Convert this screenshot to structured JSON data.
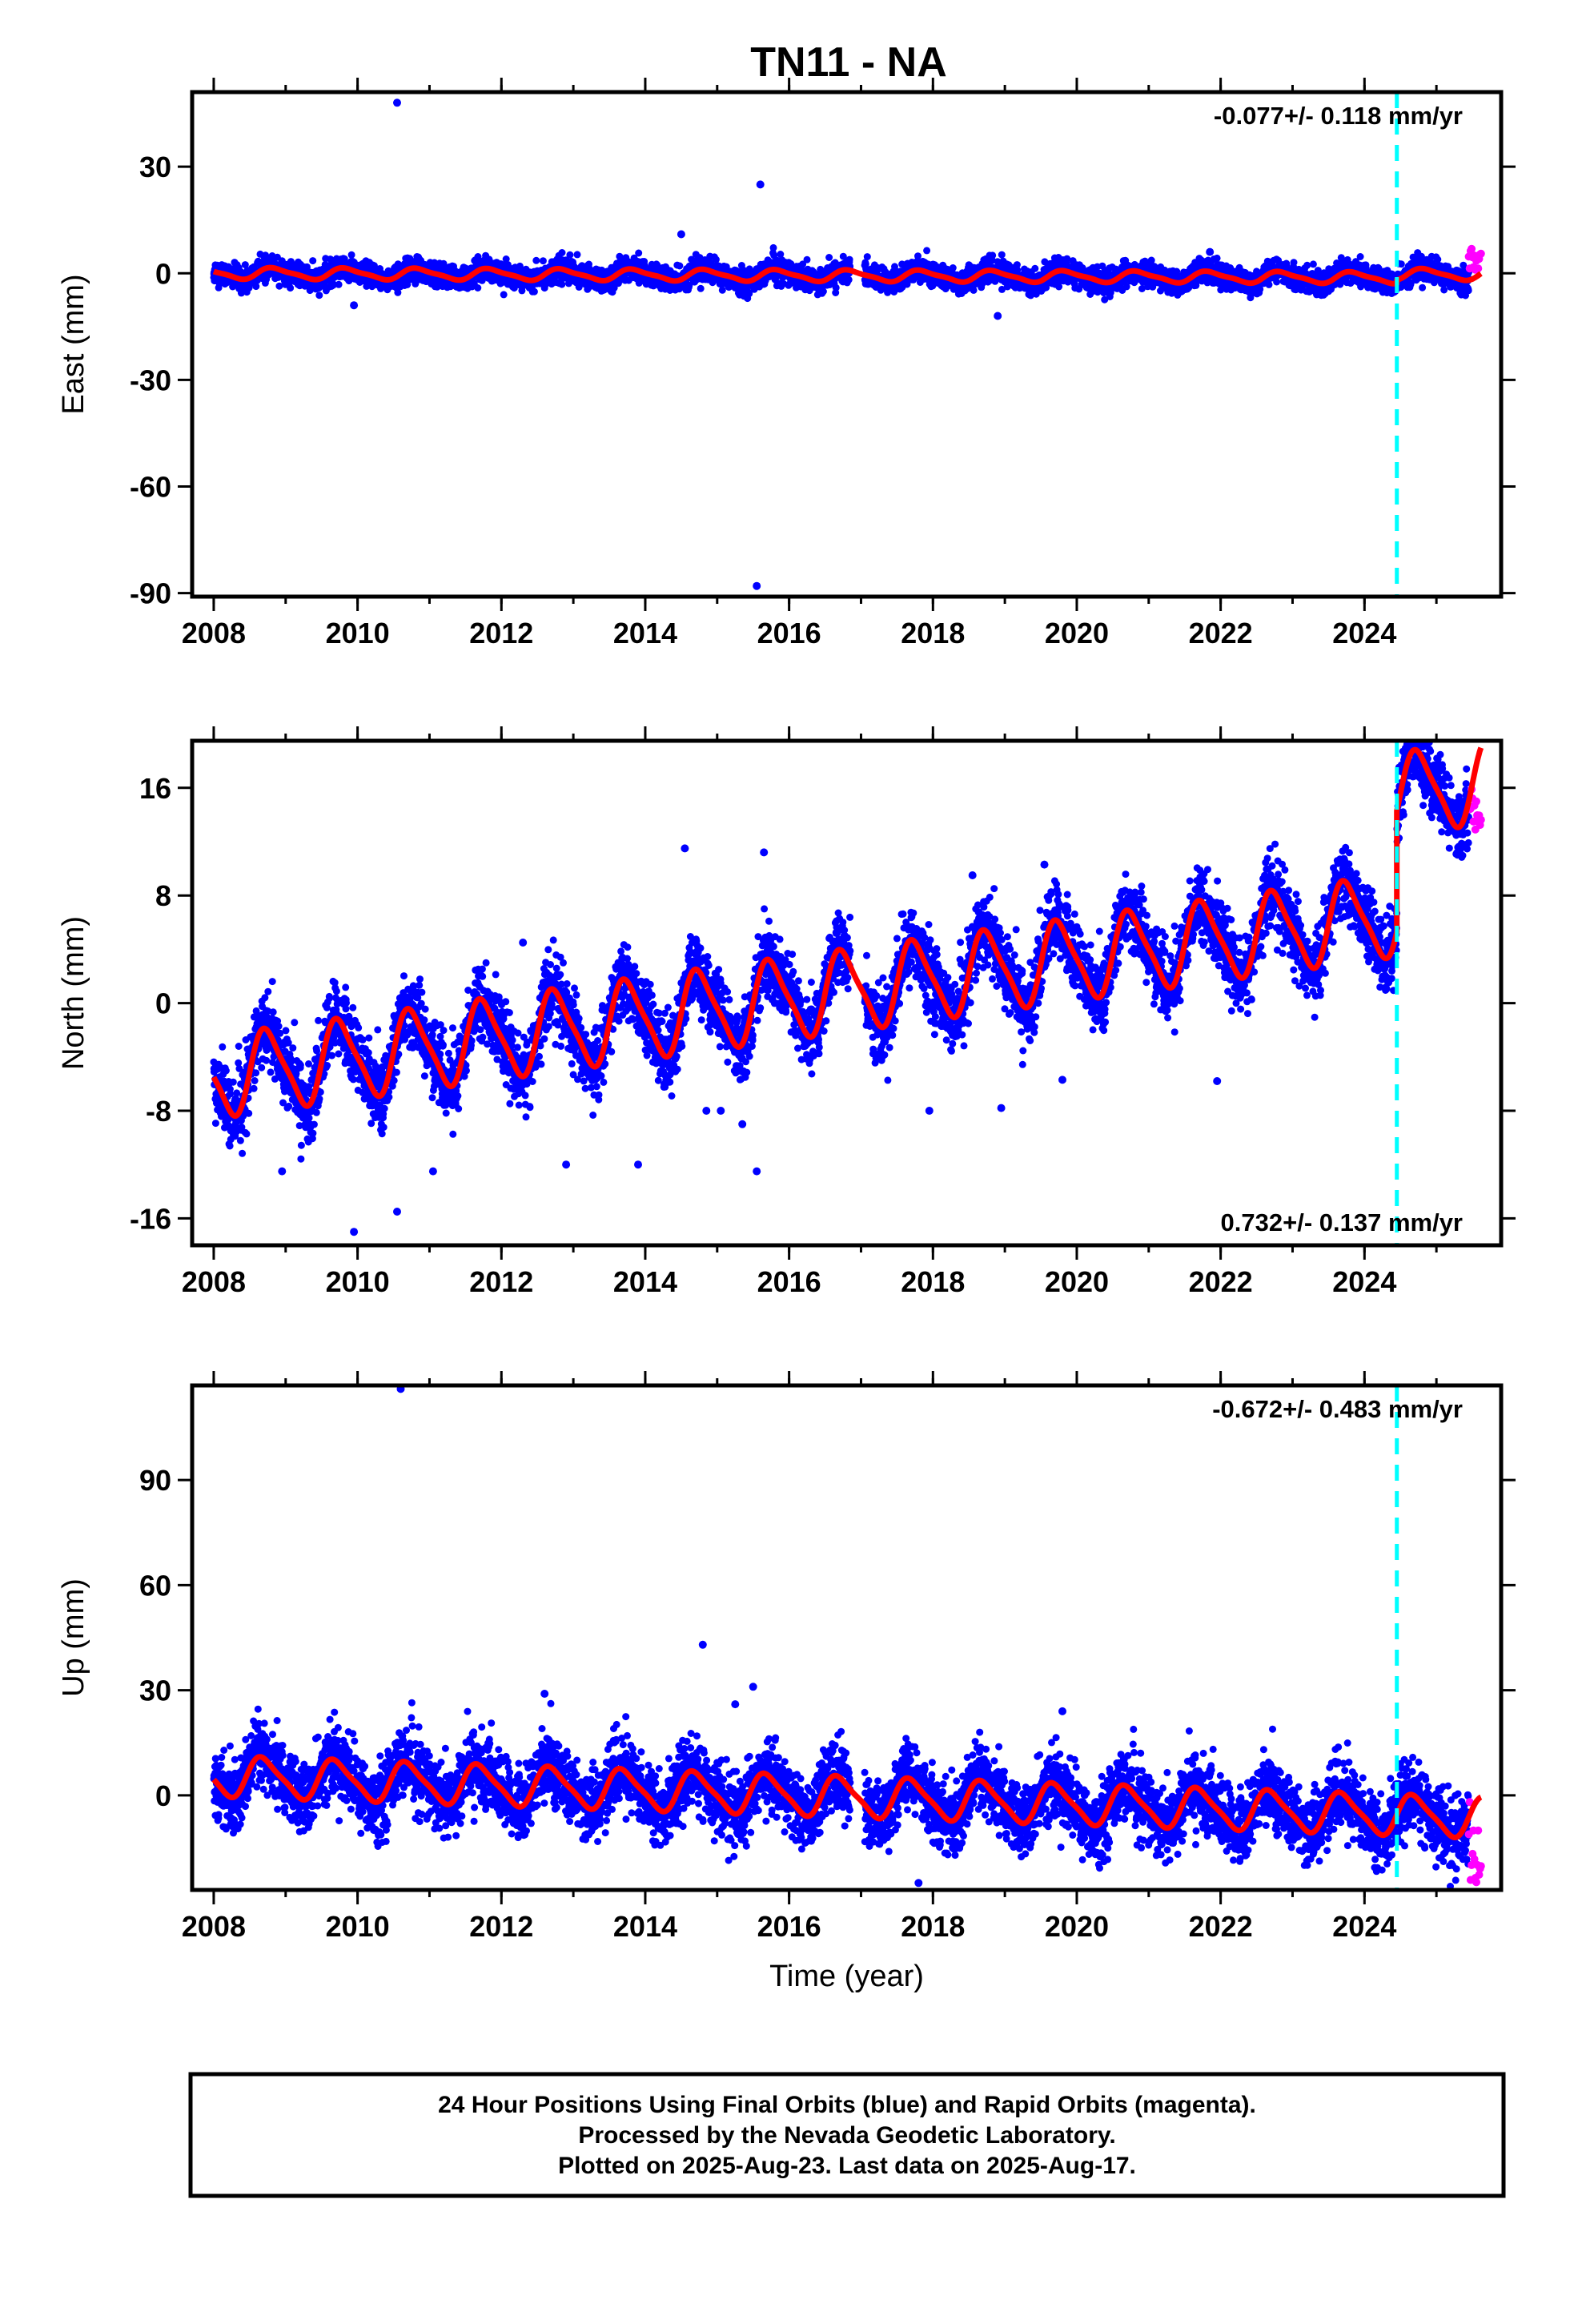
{
  "title": "TN11 - NA",
  "colors": {
    "final_orbits": "#0000ff",
    "rapid_orbits": "#ff00ff",
    "model": "#ff0000",
    "event_line": "#00ffff",
    "frame": "#000000"
  },
  "chart_data": [
    {
      "type": "scatter",
      "component": "East",
      "ylabel": "East (mm)",
      "xlabel": "",
      "xlim": [
        2007.7,
        2025.9
      ],
      "ylim": [
        -91,
        51
      ],
      "xticks": [
        2008,
        2010,
        2012,
        2014,
        2016,
        2018,
        2020,
        2022,
        2024
      ],
      "yticks": [
        30,
        0,
        -30,
        -60,
        -90
      ],
      "rate_label": "-0.077+/- 0.118 mm/yr",
      "rate_label_position": "top-right",
      "event_line_x": 2024.45,
      "gap": [
        2016.85,
        2017.05
      ],
      "model": {
        "offset": 0,
        "trend": -0.077,
        "annual_amp": 1.5,
        "annual_phase": 0.6,
        "semiannual_amp": 0.4,
        "step_at": 2024.45,
        "step_size": 1.0
      },
      "noise_sd": 1.6,
      "outliers": [
        {
          "x": 2010.55,
          "y": 48
        },
        {
          "x": 2015.6,
          "y": 25
        },
        {
          "x": 2015.55,
          "y": -88
        },
        {
          "x": 2009.95,
          "y": -9
        },
        {
          "x": 2018.9,
          "y": -12
        },
        {
          "x": 2014.5,
          "y": 11
        },
        {
          "x": 2021.85,
          "y": 6
        }
      ],
      "rapid_points": {
        "x_start": 2025.45,
        "x_end": 2025.62,
        "y_min": 1,
        "y_max": 7
      }
    },
    {
      "type": "scatter",
      "component": "North",
      "ylabel": "North (mm)",
      "xlabel": "",
      "xlim": [
        2007.7,
        2025.9
      ],
      "ylim": [
        -18,
        19.5
      ],
      "xticks": [
        2008,
        2010,
        2012,
        2014,
        2016,
        2018,
        2020,
        2022,
        2024
      ],
      "yticks": [
        16,
        8,
        0,
        -8,
        -16
      ],
      "rate_label": "0.732+/- 0.137 mm/yr",
      "rate_label_position": "bottom-right",
      "event_line_x": 2024.45,
      "gap": [
        2016.85,
        2017.05
      ],
      "model": {
        "offset": -5.5,
        "trend": 0.732,
        "annual_amp": 2.9,
        "annual_phase": 0.5,
        "semiannual_amp": 0.6,
        "step_at": 2024.45,
        "step_size": 9.0
      },
      "noise_sd": 1.3,
      "outliers": [
        {
          "x": 2014.55,
          "y": 11.5
        },
        {
          "x": 2015.65,
          "y": 11.2
        },
        {
          "x": 2009.95,
          "y": -17
        },
        {
          "x": 2010.55,
          "y": -15.5
        },
        {
          "x": 2015.55,
          "y": -12.5
        },
        {
          "x": 2008.95,
          "y": -12.5
        },
        {
          "x": 2011.05,
          "y": -12.5
        },
        {
          "x": 2012.9,
          "y": -12
        },
        {
          "x": 2013.9,
          "y": -12
        },
        {
          "x": 2014.85,
          "y": -8
        },
        {
          "x": 2015.05,
          "y": -8
        },
        {
          "x": 2015.35,
          "y": -9
        },
        {
          "x": 2017.95,
          "y": -8
        },
        {
          "x": 2018.95,
          "y": -7.8
        },
        {
          "x": 2019.8,
          "y": -5.7
        },
        {
          "x": 2021.95,
          "y": -5.8
        },
        {
          "x": 2019.55,
          "y": 10.3
        },
        {
          "x": 2018.55,
          "y": 9.5
        },
        {
          "x": 2012.3,
          "y": 4.5
        },
        {
          "x": 2024.6,
          "y": 19
        }
      ],
      "rapid_points": {
        "x_start": 2025.45,
        "x_end": 2025.62,
        "y_min": 12.5,
        "y_max": 16
      }
    },
    {
      "type": "scatter",
      "component": "Up",
      "ylabel": "Up (mm)",
      "xlabel": "Time (year)",
      "xlim": [
        2007.7,
        2025.9
      ],
      "ylim": [
        -27,
        117
      ],
      "xticks": [
        2008,
        2010,
        2012,
        2014,
        2016,
        2018,
        2020,
        2022,
        2024
      ],
      "yticks": [
        90,
        60,
        30,
        0
      ],
      "rate_label": "-0.672+/- 0.483 mm/yr",
      "rate_label_position": "top-right",
      "event_line_x": 2024.45,
      "gap": [
        2016.85,
        2017.05
      ],
      "model": {
        "offset": 5.5,
        "trend": -0.672,
        "annual_amp": 5.5,
        "annual_phase": 0.45,
        "semiannual_amp": 1.2,
        "step_at": 2024.45,
        "step_size": 0
      },
      "noise_sd": 4.8,
      "outliers": [
        {
          "x": 2010.6,
          "y": 116
        },
        {
          "x": 2014.8,
          "y": 43
        },
        {
          "x": 2015.5,
          "y": 31
        },
        {
          "x": 2019.8,
          "y": 24
        },
        {
          "x": 2012.6,
          "y": 29
        },
        {
          "x": 2017.8,
          "y": -25
        },
        {
          "x": 2015.25,
          "y": 26
        }
      ],
      "rapid_points": {
        "x_start": 2025.45,
        "x_end": 2025.62,
        "y_min": -25,
        "y_max": 0
      }
    }
  ],
  "caption": {
    "lines": [
      "24 Hour Positions Using Final Orbits (blue) and Rapid Orbits (magenta).",
      "Processed by the Nevada Geodetic Laboratory.",
      "Plotted on 2025-Aug-23. Last data on 2025-Aug-17."
    ]
  }
}
